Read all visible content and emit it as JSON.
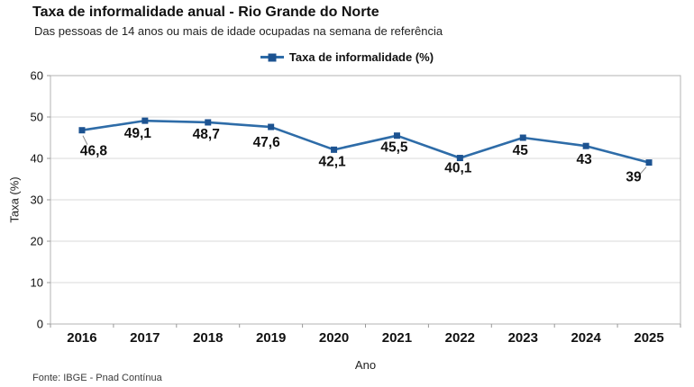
{
  "chart_data": {
    "type": "line",
    "title": "Taxa de informalidade anual - Rio Grande do Norte",
    "subtitle": "Das pessoas de 14 anos ou mais de idade ocupadas na semana de referência",
    "source": "Fonte: IBGE - Pnad Contínua",
    "categories": [
      "2016",
      "2017",
      "2018",
      "2019",
      "2020",
      "2021",
      "2022",
      "2023",
      "2024",
      "2025"
    ],
    "series": [
      {
        "name": "Taxa de informalidade (%)",
        "values": [
          46.8,
          49.1,
          48.7,
          47.6,
          42.1,
          45.5,
          40.1,
          45,
          43,
          39
        ]
      }
    ],
    "data_labels": [
      "46,8",
      "49,1",
      "48,7",
      "47,6",
      "42,1",
      "45,5",
      "40,1",
      "45",
      "43",
      "39"
    ],
    "xlabel": "Ano",
    "ylabel": "Taxa (%)",
    "ylim": [
      0,
      60
    ],
    "yticks": [
      0,
      10,
      20,
      30,
      40,
      50,
      60
    ],
    "grid": true,
    "legend_position": "top",
    "colors": {
      "line": "#2e6ca8",
      "marker": "#1d5391",
      "grid": "#d9d9d9",
      "axis": "#b3b3b3",
      "tick": "#999999",
      "text": "#111111",
      "leader": "#8a8a8a"
    }
  }
}
